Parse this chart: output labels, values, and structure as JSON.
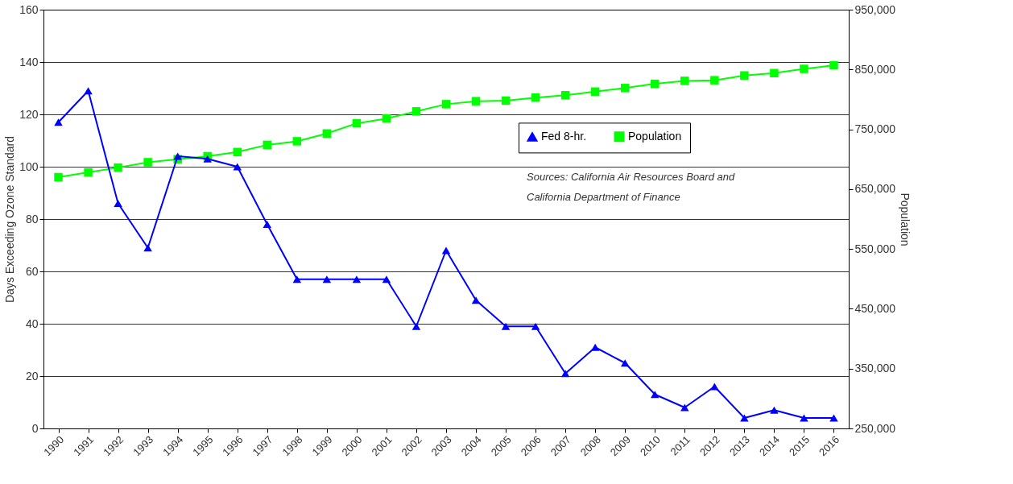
{
  "chart_data": {
    "type": "line",
    "categories": [
      "1990",
      "1991",
      "1992",
      "1993",
      "1994",
      "1995",
      "1996",
      "1997",
      "1998",
      "1999",
      "2000",
      "2001",
      "2002",
      "2003",
      "2004",
      "2005",
      "2006",
      "2007",
      "2008",
      "2009",
      "2010",
      "2011",
      "2012",
      "2013",
      "2014",
      "2015",
      "2016"
    ],
    "series": [
      {
        "name": "Fed 8-hr.",
        "color": "#0000ff",
        "marker": "triangle",
        "values": [
          117,
          129,
          86,
          69,
          104,
          103,
          100,
          78,
          57,
          57,
          57,
          57,
          39,
          68,
          49,
          39,
          39,
          21,
          31,
          25,
          13,
          8,
          16,
          4,
          7,
          4,
          4
        ]
      },
      {
        "name": "Population",
        "color": "#00ff00",
        "marker": "square",
        "axis": "y2",
        "values": [
          670000,
          678000,
          686000,
          695000,
          700000,
          705000,
          712000,
          724000,
          730000,
          743000,
          760000,
          768000,
          780000,
          792000,
          797000,
          798000,
          803000,
          807000,
          813000,
          819000,
          826000,
          831000,
          832000,
          840000,
          844000,
          851000,
          857000
        ]
      }
    ],
    "ylabel": "Days Exceeding Ozone Standard",
    "y2label": "Population",
    "ylim": [
      0,
      160
    ],
    "yticks": [
      0,
      20,
      40,
      60,
      80,
      100,
      120,
      140,
      160
    ],
    "y2lim": [
      250000,
      950000
    ],
    "y2ticks": [
      {
        "value": 250000,
        "label": "250,000"
      },
      {
        "value": 350000,
        "label": "350,000"
      },
      {
        "value": 450000,
        "label": "450,000"
      },
      {
        "value": 550000,
        "label": "550,000"
      },
      {
        "value": 650000,
        "label": "650,000"
      },
      {
        "value": 750000,
        "label": "750,000"
      },
      {
        "value": 850000,
        "label": "850,000"
      },
      {
        "value": 950000,
        "label": "950,000"
      }
    ],
    "grid": "y",
    "legend": "top right",
    "line_style": "solid",
    "annotations": [
      "Sources: California Air Resources Board and",
      "California Department of Finance"
    ]
  }
}
